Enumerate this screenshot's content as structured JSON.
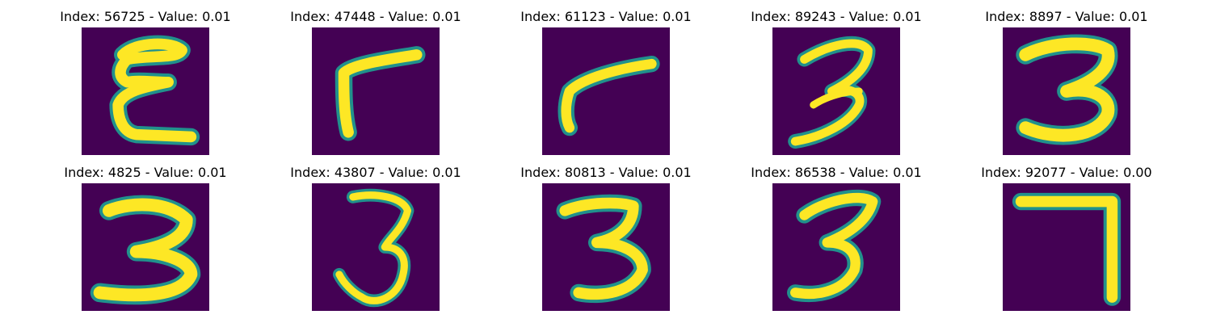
{
  "colors": {
    "background": "#440154",
    "stroke_mid": "#21918c",
    "stroke_high": "#fde725"
  },
  "panels": [
    {
      "index": "56725",
      "value": "0.01",
      "title": "Index: 56725 - Value: 0.01",
      "glyph": "3 (rotated, opening left)"
    },
    {
      "index": "47448",
      "value": "0.01",
      "title": "Index: 47448 - Value: 0.01",
      "glyph": "7 (mirrored)"
    },
    {
      "index": "61123",
      "value": "0.01",
      "title": "Index: 61123 - Value: 0.01",
      "glyph": "7 (mirrored, slanted)"
    },
    {
      "index": "89243",
      "value": "0.01",
      "title": "Index: 89243 - Value: 0.01",
      "glyph": "3"
    },
    {
      "index": "8897",
      "value": "0.01",
      "title": "Index: 8897 - Value: 0.01",
      "glyph": "3"
    },
    {
      "index": "4825",
      "value": "0.01",
      "title": "Index: 4825 - Value: 0.01",
      "glyph": "3"
    },
    {
      "index": "43807",
      "value": "0.01",
      "title": "Index: 43807 - Value: 0.01",
      "glyph": "3"
    },
    {
      "index": "80813",
      "value": "0.01",
      "title": "Index: 80813 - Value: 0.01",
      "glyph": "3"
    },
    {
      "index": "86538",
      "value": "0.01",
      "title": "Index: 86538 - Value: 0.01",
      "glyph": "3"
    },
    {
      "index": "92077",
      "value": "0.00",
      "title": "Index: 92077 - Value: 0.00",
      "glyph": "7"
    }
  ]
}
